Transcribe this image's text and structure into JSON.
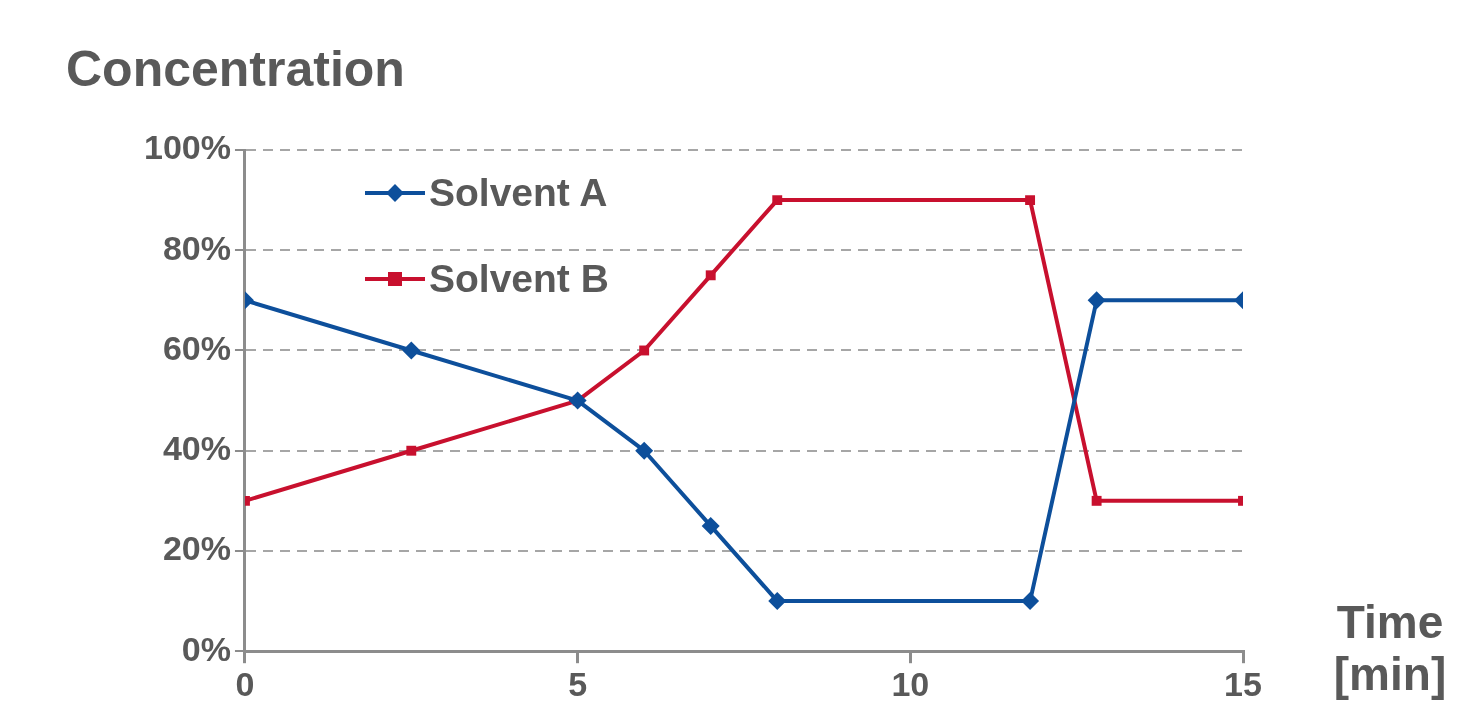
{
  "chart_data": {
    "type": "line",
    "ylabel": "Concentration",
    "xlabel": "Time [min]",
    "x": [
      0,
      2.5,
      5,
      6,
      7,
      8,
      11.8,
      12.8,
      15
    ],
    "series": [
      {
        "name": "Solvent A",
        "color": "#0d4f9b",
        "marker": "diamond",
        "values": [
          70,
          60,
          50,
          40,
          25,
          10,
          10,
          70,
          70
        ]
      },
      {
        "name": "Solvent B",
        "color": "#c8102e",
        "marker": "square",
        "values": [
          30,
          40,
          50,
          60,
          75,
          90,
          90,
          30,
          30
        ]
      }
    ],
    "xlim": [
      0,
      15
    ],
    "xticks": [
      0,
      5,
      10,
      15
    ],
    "ylim": [
      0,
      100
    ],
    "yticks": [
      {
        "value": 0,
        "label": "0%"
      },
      {
        "value": 20,
        "label": "20%"
      },
      {
        "value": 40,
        "label": "40%"
      },
      {
        "value": 60,
        "label": "60%"
      },
      {
        "value": 80,
        "label": "80%"
      },
      {
        "value": 100,
        "label": "100%"
      }
    ],
    "grid": "y",
    "legend": "top left",
    "line_style": "solid"
  }
}
